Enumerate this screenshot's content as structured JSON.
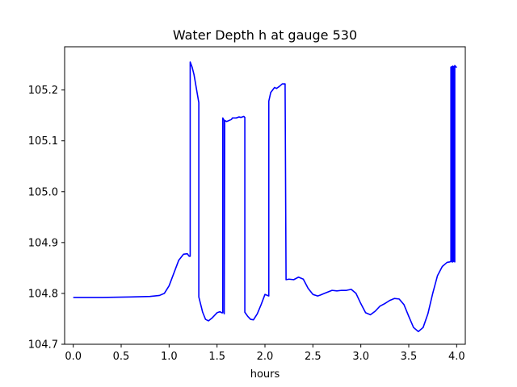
{
  "chart_data": {
    "type": "line",
    "title": "Water Depth h at gauge 530",
    "xlabel": "hours",
    "ylabel": "",
    "xlim": [
      -0.09,
      4.09
    ],
    "ylim": [
      104.7,
      105.285
    ],
    "xticks": [
      0.0,
      0.5,
      1.0,
      1.5,
      2.0,
      2.5,
      3.0,
      3.5,
      4.0
    ],
    "xtick_labels": [
      "0.0",
      "0.5",
      "1.0",
      "1.5",
      "2.0",
      "2.5",
      "3.0",
      "3.5",
      "4.0"
    ],
    "yticks": [
      104.7,
      104.8,
      104.9,
      105.0,
      105.1,
      105.2
    ],
    "ytick_labels": [
      "104.7",
      "104.8",
      "104.9",
      "105.0",
      "105.1",
      "105.2"
    ],
    "grid": false,
    "series": [
      {
        "color": "#0000ff",
        "x": [
          0.0,
          0.3,
          0.6,
          0.8,
          0.9,
          0.95,
          1.0,
          1.05,
          1.1,
          1.15,
          1.19,
          1.21,
          1.22,
          1.22,
          1.24,
          1.26,
          1.31,
          1.31,
          1.35,
          1.38,
          1.41,
          1.45,
          1.5,
          1.53,
          1.55,
          1.56,
          1.56,
          1.575,
          1.575,
          1.58,
          1.6,
          1.65,
          1.66,
          1.7,
          1.73,
          1.75,
          1.78,
          1.79,
          1.79,
          1.82,
          1.85,
          1.88,
          1.92,
          1.96,
          2.0,
          2.04,
          2.04,
          2.06,
          2.08,
          2.1,
          2.12,
          2.15,
          2.18,
          2.21,
          2.22,
          2.25,
          2.3,
          2.35,
          2.4,
          2.45,
          2.5,
          2.55,
          2.58,
          2.62,
          2.7,
          2.75,
          2.8,
          2.85,
          2.9,
          2.95,
          3.0,
          3.05,
          3.1,
          3.15,
          3.2,
          3.25,
          3.3,
          3.35,
          3.4,
          3.45,
          3.5,
          3.55,
          3.6,
          3.65,
          3.7,
          3.75,
          3.8,
          3.85,
          3.9,
          3.93,
          3.94,
          3.94,
          3.95,
          3.95,
          3.96,
          3.96,
          3.97,
          3.97,
          3.98,
          3.98,
          3.99,
          4.0
        ],
        "y": [
          104.792,
          104.792,
          104.793,
          104.794,
          104.796,
          104.8,
          104.815,
          104.84,
          104.865,
          104.877,
          104.878,
          104.873,
          104.873,
          105.255,
          105.245,
          105.23,
          105.175,
          104.793,
          104.763,
          104.749,
          104.746,
          104.752,
          104.762,
          104.764,
          104.762,
          104.762,
          105.145,
          105.14,
          104.76,
          105.14,
          105.138,
          105.142,
          105.145,
          105.145,
          105.147,
          105.146,
          105.148,
          105.146,
          104.763,
          104.755,
          104.749,
          104.748,
          104.76,
          104.778,
          104.798,
          104.795,
          105.178,
          105.195,
          105.2,
          105.205,
          105.203,
          105.207,
          105.212,
          105.212,
          104.827,
          104.828,
          104.827,
          104.832,
          104.828,
          104.81,
          104.798,
          104.795,
          104.797,
          104.8,
          104.806,
          104.805,
          104.806,
          104.806,
          104.808,
          104.8,
          104.78,
          104.762,
          104.758,
          104.765,
          104.775,
          104.78,
          104.786,
          104.79,
          104.789,
          104.778,
          104.755,
          104.733,
          104.725,
          104.733,
          104.76,
          104.8,
          104.835,
          104.853,
          104.861,
          104.862,
          104.863,
          105.245,
          104.862,
          105.246,
          104.862,
          105.247,
          104.863,
          105.246,
          104.862,
          105.248,
          105.246,
          105.244
        ]
      }
    ]
  }
}
